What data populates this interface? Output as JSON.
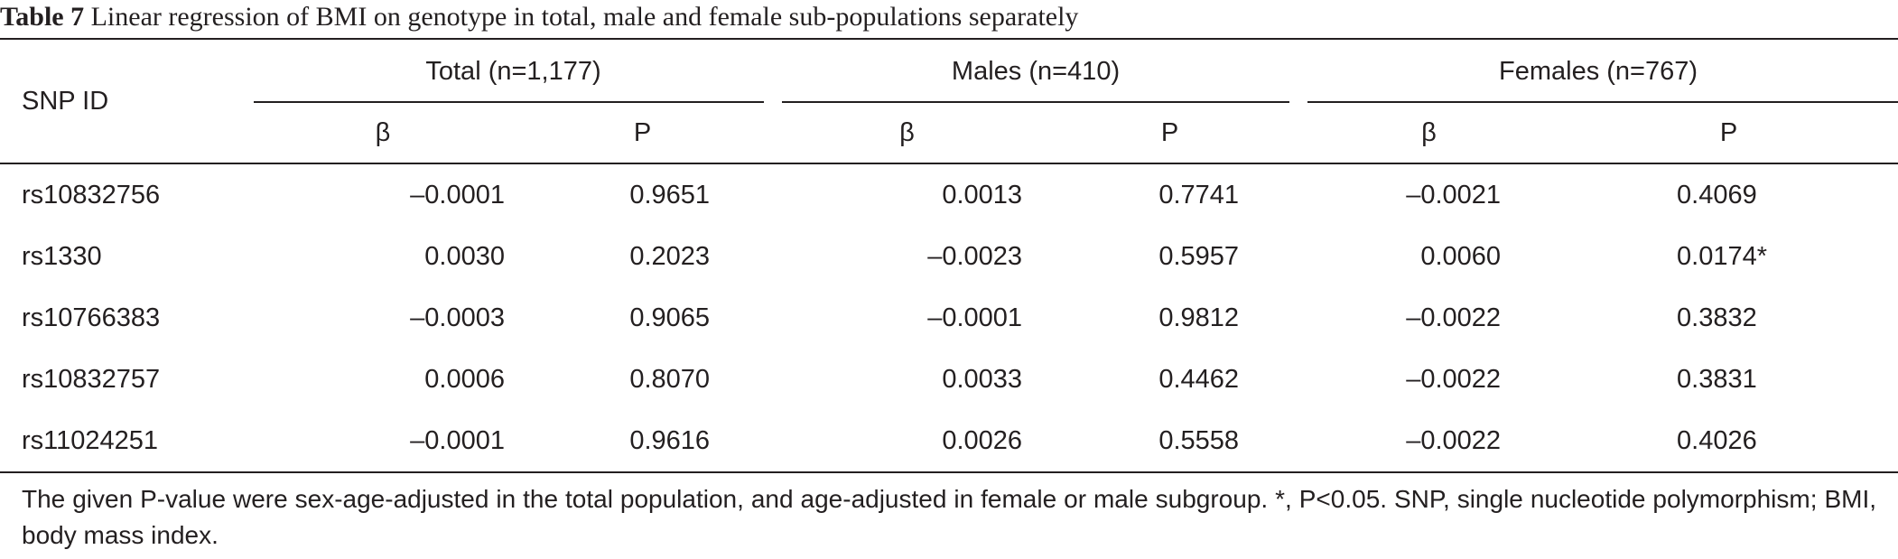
{
  "caption": {
    "label": "Table 7",
    "text": "Linear regression of BMI on genotype in total, male and female sub-populations separately"
  },
  "table": {
    "row_header": "SNP ID",
    "groups": [
      {
        "label": "Total (n=1,177)",
        "beta": "β",
        "p": "P"
      },
      {
        "label": "Males (n=410)",
        "beta": "β",
        "p": "P"
      },
      {
        "label": "Females (n=767)",
        "beta": "β",
        "p": "P"
      }
    ],
    "rows": [
      {
        "snp": "rs10832756",
        "total_beta": "–0.0001",
        "total_p": "0.9651",
        "male_beta": "0.0013",
        "male_p": "0.7741",
        "female_beta": "–0.0021",
        "female_p": "0.4069"
      },
      {
        "snp": "rs1330",
        "total_beta": "0.0030",
        "total_p": "0.2023",
        "male_beta": "–0.0023",
        "male_p": "0.5957",
        "female_beta": "0.0060",
        "female_p": "0.0174*"
      },
      {
        "snp": "rs10766383",
        "total_beta": "–0.0003",
        "total_p": "0.9065",
        "male_beta": "–0.0001",
        "male_p": "0.9812",
        "female_beta": "–0.0022",
        "female_p": "0.3832"
      },
      {
        "snp": "rs10832757",
        "total_beta": "0.0006",
        "total_p": "0.8070",
        "male_beta": "0.0033",
        "male_p": "0.4462",
        "female_beta": "–0.0022",
        "female_p": "0.3831"
      },
      {
        "snp": "rs11024251",
        "total_beta": "–0.0001",
        "total_p": "0.9616",
        "male_beta": "0.0026",
        "male_p": "0.5558",
        "female_beta": "–0.0022",
        "female_p": "0.4026"
      }
    ]
  },
  "footnote": "The given P-value were sex-age-adjusted in the total population, and age-adjusted in female or male subgroup. *, P<0.05. SNP, single nucleotide polymorphism; BMI, body mass index."
}
